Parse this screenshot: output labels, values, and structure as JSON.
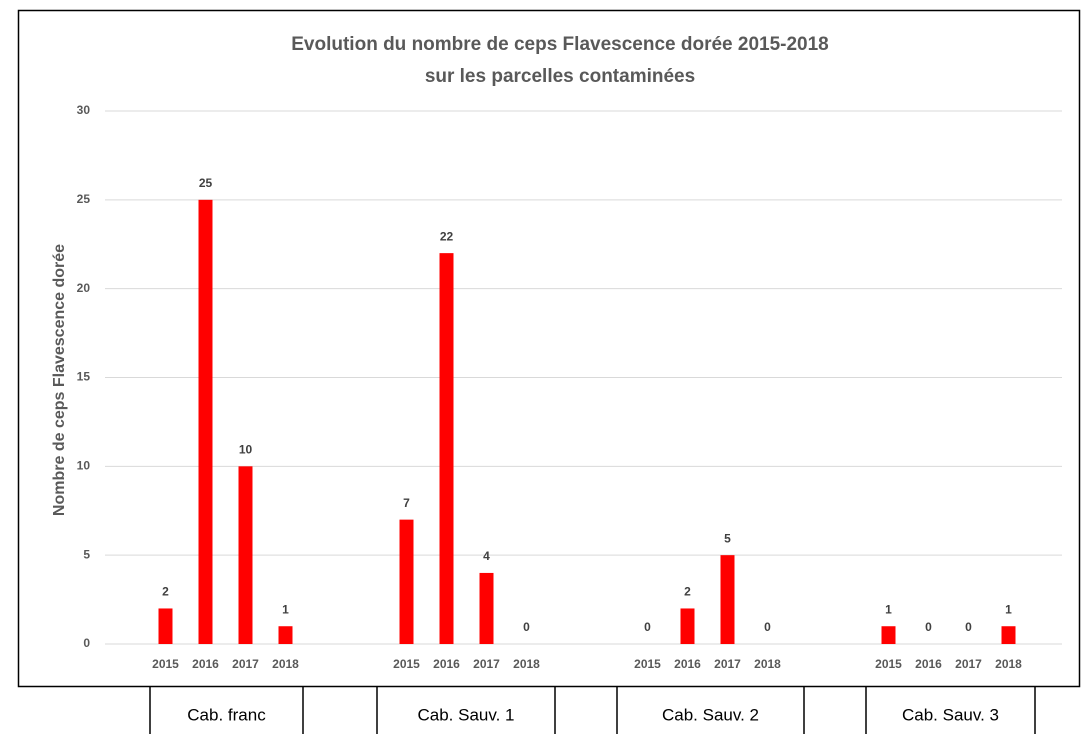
{
  "chart_data": {
    "type": "bar",
    "title": [
      "Evolution du nombre de ceps Flavescence dorée 2015-2018",
      "sur les parcelles contaminées"
    ],
    "y_label": "Nombre de ceps Flavescence dorée",
    "groups": [
      "Cab. franc",
      "Cab. Sauv. 1",
      "Cab. Sauv. 2",
      "Cab. Sauv. 3"
    ],
    "categories": [
      "2015",
      "2016",
      "2017",
      "2018",
      "2015",
      "2016",
      "2017",
      "2018",
      "2015",
      "2016",
      "2017",
      "2018",
      "2015",
      "2016",
      "2017",
      "2018"
    ],
    "values": [
      2,
      25,
      10,
      1,
      7,
      22,
      4,
      0,
      0,
      2,
      5,
      0,
      1,
      0,
      0,
      1
    ],
    "color": "#ff0000",
    "ylim": [
      0,
      30
    ],
    "yticks": [
      0,
      5,
      10,
      15,
      20,
      25,
      30
    ],
    "grid": true
  }
}
